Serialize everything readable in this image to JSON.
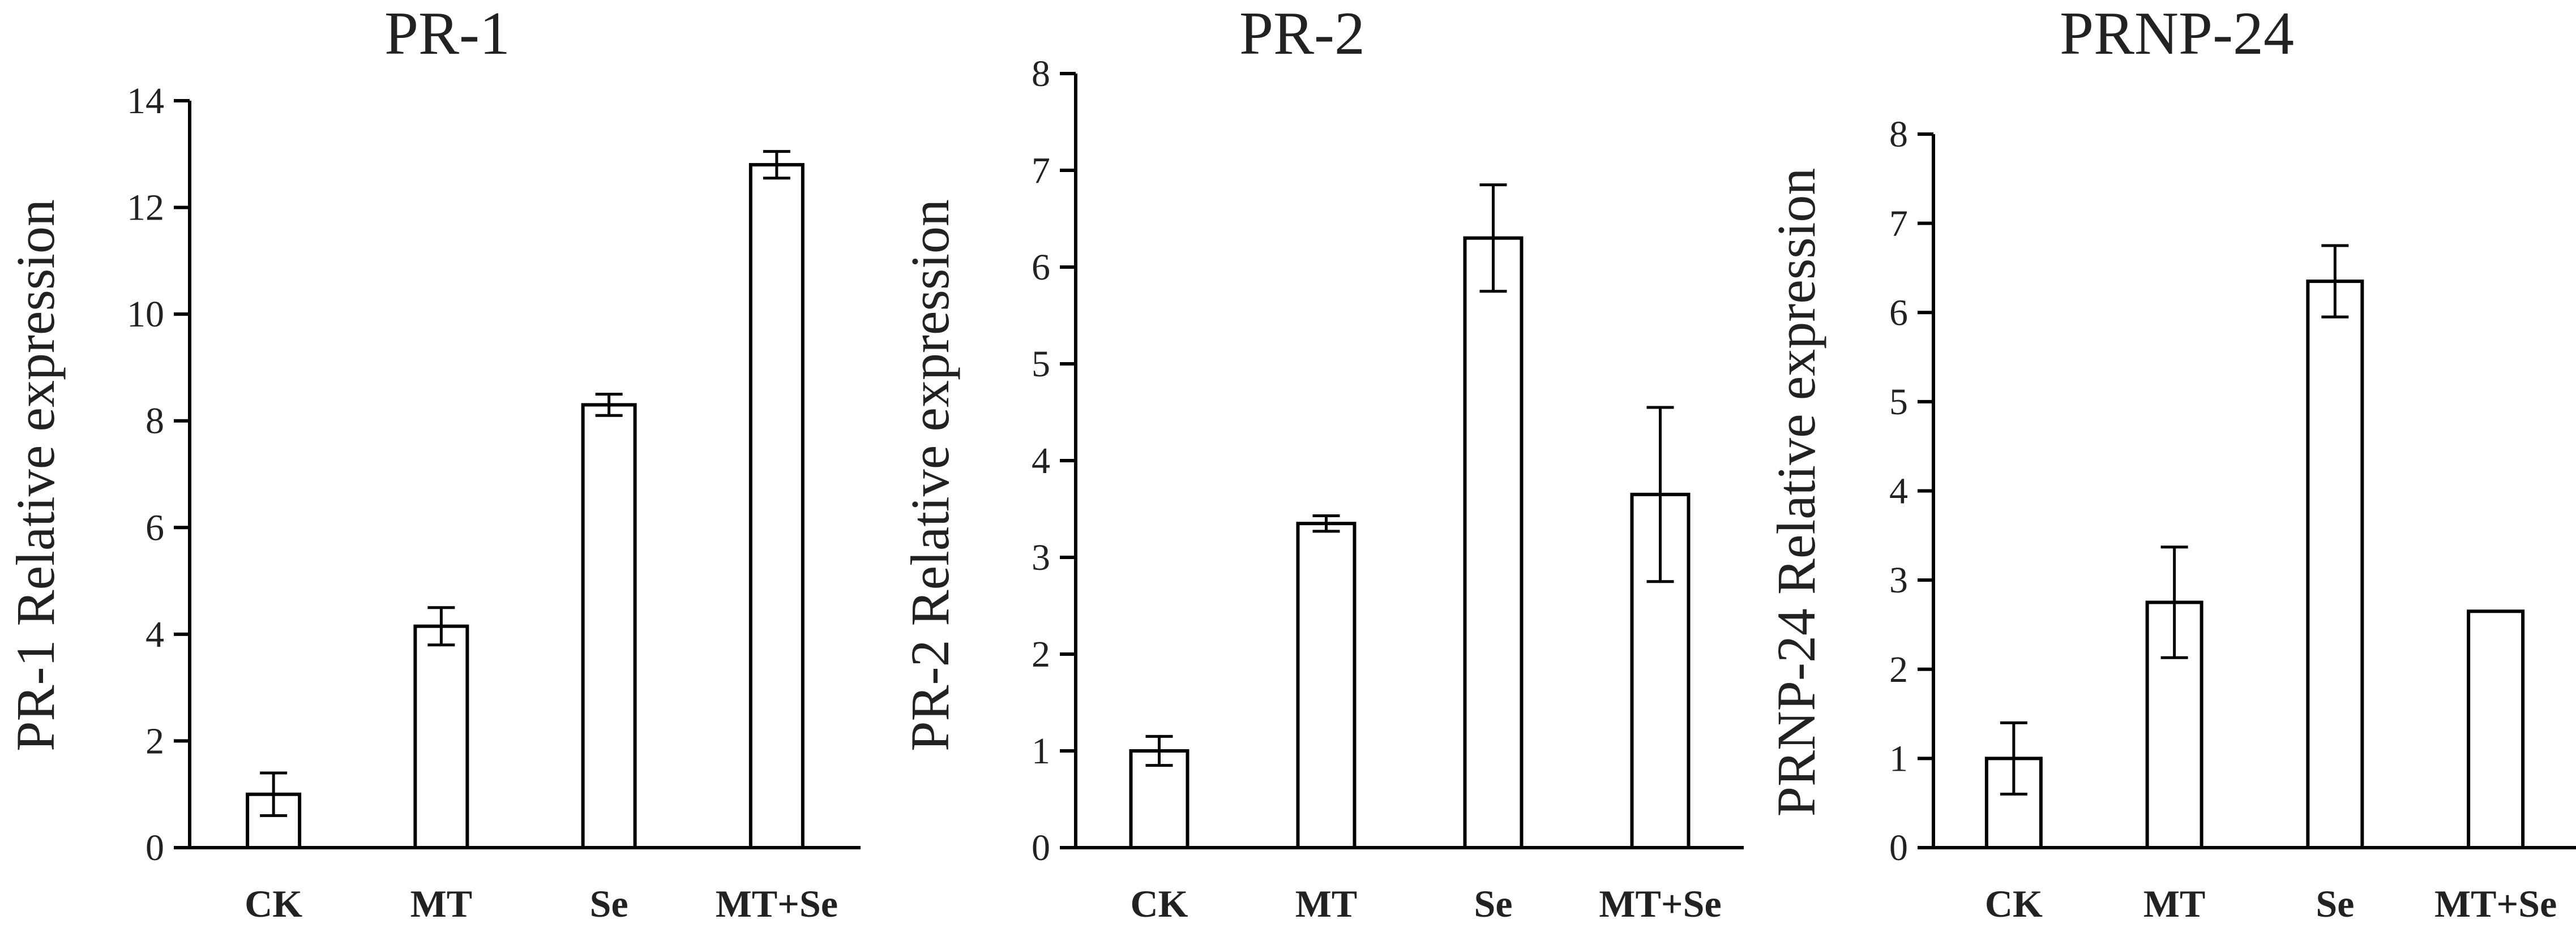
{
  "chart_data": [
    {
      "type": "bar",
      "title": "PR-1",
      "ylabel": "PR-1 Relative expression",
      "xlabel": "",
      "categories": [
        "CK",
        "MT",
        "Se",
        "MT+Se"
      ],
      "values": [
        1.0,
        4.15,
        8.3,
        12.8
      ],
      "errors": [
        0.4,
        0.35,
        0.2,
        0.25
      ],
      "ylim": [
        0,
        14
      ],
      "yticks": [
        "0",
        "2",
        "4",
        "6",
        "8",
        "10",
        "12",
        "14"
      ],
      "colors": {
        "bar_fill": "#ffffff",
        "bar_stroke": "#000000"
      },
      "grid": false
    },
    {
      "type": "bar",
      "title": "PR-2",
      "ylabel": "PR-2 Relative expression",
      "xlabel": "",
      "categories": [
        "CK",
        "MT",
        "Se",
        "MT+Se"
      ],
      "values": [
        1.0,
        3.35,
        6.3,
        3.65
      ],
      "errors": [
        0.15,
        0.08,
        0.55,
        0.9
      ],
      "ylim": [
        0,
        8
      ],
      "yticks": [
        "0",
        "1",
        "2",
        "3",
        "4",
        "5",
        "6",
        "7",
        "8"
      ],
      "colors": {
        "bar_fill": "#ffffff",
        "bar_stroke": "#000000"
      },
      "grid": false
    },
    {
      "type": "bar",
      "title": "PRNP-24",
      "ylabel": "PRNP-24 Relative expression",
      "xlabel": "",
      "categories": [
        "CK",
        "MT",
        "Se",
        "MT+Se"
      ],
      "values": [
        1.0,
        2.75,
        6.35,
        2.65
      ],
      "errors": [
        0.4,
        0.62,
        0.4,
        0.0
      ],
      "ylim": [
        0,
        8
      ],
      "yticks": [
        "0",
        "1",
        "2",
        "3",
        "4",
        "5",
        "6",
        "7",
        "8"
      ],
      "colors": {
        "bar_fill": "#ffffff",
        "bar_stroke": "#000000"
      },
      "grid": false
    }
  ]
}
